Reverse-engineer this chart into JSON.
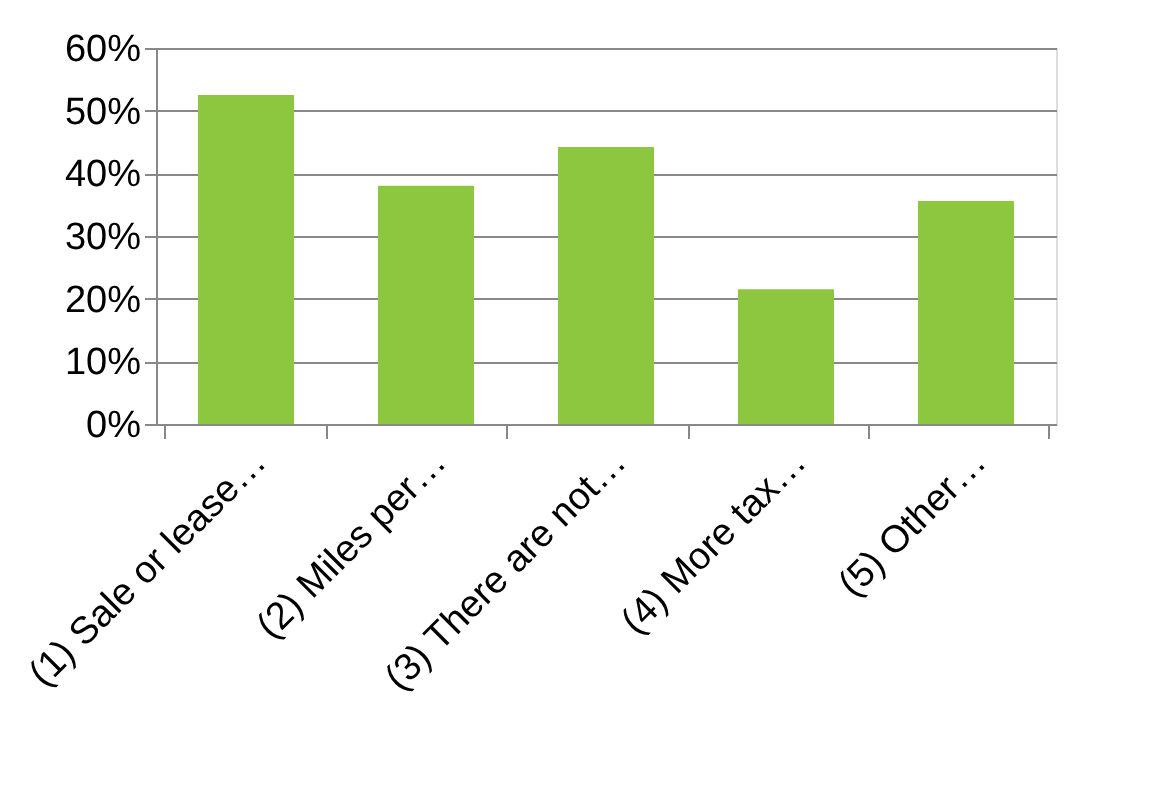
{
  "chart_data": {
    "type": "bar",
    "categories": [
      "(1) Sale or lease…",
      "(2) Miles per…",
      "(3) There are not…",
      "(4) More tax…",
      "(5) Other…"
    ],
    "values": [
      52.5,
      38.0,
      44.2,
      21.5,
      35.6
    ],
    "color": "#8dc63f",
    "ylim": [
      0,
      60
    ],
    "yticks": [
      {
        "value": 0,
        "label": "0%"
      },
      {
        "value": 10,
        "label": "10%"
      },
      {
        "value": 20,
        "label": "20%"
      },
      {
        "value": 30,
        "label": "30%"
      },
      {
        "value": 40,
        "label": "40%"
      },
      {
        "value": 50,
        "label": "50%"
      },
      {
        "value": 60,
        "label": "60%"
      }
    ],
    "grid": "y"
  }
}
